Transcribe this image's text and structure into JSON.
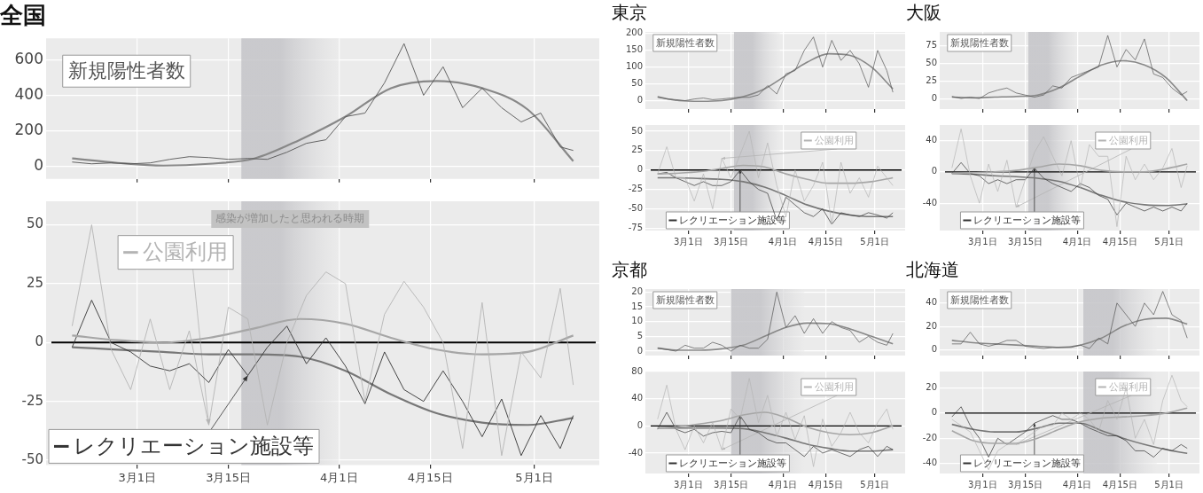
{
  "chart_data": [
    {
      "type": "line",
      "title": "全国",
      "x": [
        "--02-20",
        "--02-23",
        "--02-26",
        "--02-29",
        "--03-03",
        "--03-06",
        "--03-09",
        "--03-12",
        "--03-15",
        "--03-18",
        "--03-21",
        "--03-24",
        "--03-27",
        "--03-30",
        "--04-02",
        "--04-05",
        "--04-08",
        "--04-11",
        "--04-14",
        "--04-17",
        "--04-20",
        "--04-23",
        "--04-26",
        "--04-29",
        "--05-02",
        "--05-05",
        "--05-07"
      ],
      "xlim": [
        "--02-16",
        "--05-11"
      ],
      "xticks": [
        {
          "value": "--03-01",
          "label": "3月1日"
        },
        {
          "value": "--03-15",
          "label": "3月15日"
        },
        {
          "value": "--04-01",
          "label": "4月1日"
        },
        {
          "value": "--04-15",
          "label": "4月15日"
        },
        {
          "value": "--05-01",
          "label": "5月1日"
        }
      ],
      "ylim": [
        -70,
        720
      ],
      "yticks": [
        0,
        200,
        400,
        600
      ],
      "grid": true,
      "legend": false,
      "tick_labels": "y",
      "bands": [
        {
          "axis": "x",
          "from": "--03-17",
          "to": "--04-01",
          "color": "#c4c4c8"
        }
      ],
      "series": [
        {
          "name": "新規陽性者数",
          "color": "#555555",
          "values": [
            25,
            15,
            20,
            15,
            20,
            40,
            55,
            50,
            40,
            45,
            40,
            80,
            130,
            150,
            280,
            300,
            470,
            690,
            400,
            560,
            330,
            440,
            330,
            250,
            300,
            110,
            90
          ]
        },
        {
          "color": "#888888",
          "x": [
            "--02-20",
            "--02-27",
            "--03-05",
            "--03-12",
            "--03-19",
            "--03-26",
            "--04-02",
            "--04-09",
            "--04-16",
            "--04-23",
            "--04-30",
            "--05-07"
          ],
          "values": [
            45,
            20,
            5,
            15,
            45,
            150,
            280,
            440,
            480,
            440,
            320,
            30
          ]
        }
      ]
    },
    {
      "type": "line",
      "x": [
        "--02-20",
        "--02-23",
        "--02-26",
        "--02-29",
        "--03-03",
        "--03-06",
        "--03-09",
        "--03-12",
        "--03-15",
        "--03-18",
        "--03-21",
        "--03-24",
        "--03-27",
        "--03-30",
        "--04-02",
        "--04-05",
        "--04-08",
        "--04-11",
        "--04-14",
        "--04-17",
        "--04-20",
        "--04-23",
        "--04-26",
        "--04-29",
        "--05-02",
        "--05-05",
        "--05-07"
      ],
      "xlim": [
        "--02-16",
        "--05-11"
      ],
      "xticks": [
        {
          "value": "--03-01",
          "label": "3月1日"
        },
        {
          "value": "--03-15",
          "label": "3月15日"
        },
        {
          "value": "--04-01",
          "label": "4月1日"
        },
        {
          "value": "--04-15",
          "label": "4月15日"
        },
        {
          "value": "--05-01",
          "label": "5月1日"
        }
      ],
      "ylim": [
        -52,
        60
      ],
      "yticks": [
        -50,
        -25,
        0,
        25,
        50
      ],
      "grid": true,
      "legend": "bottom left",
      "bands": [
        {
          "axis": "x",
          "from": "--03-17",
          "to": "--04-01",
          "label": "感染が増加したと思われる時期",
          "color": "#c4c4c8"
        }
      ],
      "ref_lines": [
        {
          "axis": "y",
          "value": 0,
          "color": "#000000"
        }
      ],
      "series": [
        {
          "name": "公園利用",
          "color": "#b4b4b4",
          "values": [
            7,
            50,
            -3,
            -20,
            10,
            -20,
            5,
            -35,
            15,
            10,
            -35,
            0,
            20,
            30,
            25,
            -25,
            12,
            26,
            15,
            0,
            -45,
            17,
            -48,
            -4,
            -15,
            23,
            -18
          ]
        },
        {
          "color": "#a6a6a6",
          "x": [
            "--02-20",
            "--02-27",
            "--03-05",
            "--03-12",
            "--03-19",
            "--03-26",
            "--04-02",
            "--04-09",
            "--04-16",
            "--04-23",
            "--04-30",
            "--05-07"
          ],
          "values": [
            3,
            1,
            0,
            2,
            6,
            10,
            8,
            2,
            -3,
            -5,
            -4,
            3
          ]
        },
        {
          "name": "レクリエーション施設等",
          "color": "#333333",
          "values": [
            -2,
            18,
            0,
            -4,
            -10,
            -12,
            -9,
            -17,
            -3,
            -14,
            -2,
            7,
            -9,
            2,
            -10,
            -26,
            -4,
            -20,
            -25,
            -12,
            -25,
            -40,
            -24,
            -48,
            -31,
            -45,
            -31
          ]
        },
        {
          "color": "#777777",
          "x": [
            "--02-20",
            "--02-27",
            "--03-05",
            "--03-12",
            "--03-19",
            "--03-26",
            "--04-02",
            "--04-09",
            "--04-16",
            "--04-23",
            "--04-30",
            "--05-07"
          ],
          "values": [
            -2,
            -3,
            -4,
            -5,
            -5,
            -6,
            -12,
            -22,
            -30,
            -34,
            -35,
            -32
          ]
        }
      ]
    },
    {
      "type": "line",
      "title": "東京",
      "x": [
        "--02-20",
        "--02-23",
        "--02-26",
        "--02-29",
        "--03-03",
        "--03-06",
        "--03-09",
        "--03-12",
        "--03-15",
        "--03-18",
        "--03-21",
        "--03-24",
        "--03-27",
        "--03-30",
        "--04-02",
        "--04-05",
        "--04-08",
        "--04-11",
        "--04-14",
        "--04-17",
        "--04-20",
        "--04-23",
        "--04-26",
        "--04-29",
        "--05-02",
        "--05-05",
        "--05-07"
      ],
      "xlim": [
        "--02-16",
        "--05-11"
      ],
      "xticks": [
        {
          "value": "--03-01",
          "label": "3月1日"
        },
        {
          "value": "--03-15",
          "label": "3月15日"
        },
        {
          "value": "--04-01",
          "label": "4月1日"
        },
        {
          "value": "--04-15",
          "label": "4月15日"
        },
        {
          "value": "--05-01",
          "label": "5月1日"
        }
      ],
      "ylim": [
        -25,
        205
      ],
      "yticks": [
        0,
        50,
        100,
        150,
        200
      ],
      "grid": true,
      "legend": false,
      "tick_labels": "y",
      "bands": [
        {
          "axis": "x",
          "from": "--03-16",
          "to": "--03-31",
          "color": "#c4c4c8"
        }
      ],
      "series": [
        {
          "name": "新規陽性者数",
          "color": "#555555",
          "values": [
            10,
            5,
            3,
            0,
            5,
            8,
            3,
            5,
            8,
            10,
            10,
            17,
            45,
            20,
            80,
            90,
            150,
            190,
            100,
            180,
            120,
            150,
            110,
            40,
            150,
            90,
            25
          ]
        },
        {
          "color": "#888888",
          "x": [
            "--02-20",
            "--02-27",
            "--03-05",
            "--03-12",
            "--03-19",
            "--03-26",
            "--04-02",
            "--04-09",
            "--04-16",
            "--04-23",
            "--04-30",
            "--05-07"
          ],
          "values": [
            12,
            0,
            -2,
            0,
            12,
            35,
            75,
            115,
            140,
            135,
            100,
            35
          ]
        }
      ]
    },
    {
      "type": "line",
      "x": [
        "--02-20",
        "--02-23",
        "--02-26",
        "--02-29",
        "--03-03",
        "--03-06",
        "--03-09",
        "--03-12",
        "--03-15",
        "--03-18",
        "--03-21",
        "--03-24",
        "--03-27",
        "--03-30",
        "--04-02",
        "--04-05",
        "--04-08",
        "--04-11",
        "--04-14",
        "--04-17",
        "--04-20",
        "--04-23",
        "--04-26",
        "--04-29",
        "--05-02",
        "--05-05",
        "--05-07"
      ],
      "xlim": [
        "--02-16",
        "--05-11"
      ],
      "xticks": [
        {
          "value": "--03-01",
          "label": "3月1日"
        },
        {
          "value": "--03-15",
          "label": "3月15日"
        },
        {
          "value": "--04-01",
          "label": "4月1日"
        },
        {
          "value": "--04-15",
          "label": "4月15日"
        },
        {
          "value": "--05-01",
          "label": "5月1日"
        }
      ],
      "ylim": [
        -78,
        58
      ],
      "yticks": [
        -75,
        -50,
        -25,
        0,
        25,
        50
      ],
      "grid": true,
      "legend": "bottom left",
      "bands": [
        {
          "axis": "x",
          "from": "--03-16",
          "to": "--03-31",
          "color": "#c4c4c8"
        }
      ],
      "ref_lines": [
        {
          "axis": "y",
          "value": 0,
          "color": "#000000"
        }
      ],
      "series": [
        {
          "name": "公園利用",
          "color": "#b4b4b4",
          "values": [
            -5,
            30,
            -10,
            -10,
            -40,
            -5,
            -50,
            15,
            -10,
            20,
            50,
            -10,
            35,
            -20,
            -60,
            0,
            -40,
            -20,
            10,
            -70,
            10,
            -30,
            -10,
            -35,
            5,
            -10,
            -20
          ]
        },
        {
          "color": "#a6a6a6",
          "x": [
            "--02-20",
            "--02-27",
            "--03-05",
            "--03-12",
            "--03-19",
            "--03-26",
            "--04-02",
            "--04-09",
            "--04-16",
            "--04-23",
            "--04-30",
            "--05-07"
          ],
          "values": [
            -5,
            -4,
            -2,
            2,
            6,
            4,
            -5,
            -12,
            -17,
            -17,
            -15,
            -10
          ]
        },
        {
          "name": "レクリエーション施設等",
          "color": "#333333",
          "values": [
            -5,
            -3,
            -10,
            -15,
            -20,
            -15,
            -20,
            -20,
            -15,
            0,
            -15,
            -25,
            -30,
            -65,
            -35,
            -45,
            -55,
            -60,
            -50,
            -70,
            -55,
            -58,
            -60,
            -55,
            -58,
            -62,
            -55
          ]
        },
        {
          "color": "#777777",
          "x": [
            "--02-20",
            "--02-27",
            "--03-05",
            "--03-12",
            "--03-19",
            "--03-26",
            "--04-02",
            "--04-09",
            "--04-16",
            "--04-23",
            "--04-30",
            "--05-07"
          ],
          "values": [
            -10,
            -10,
            -11,
            -12,
            -15,
            -22,
            -33,
            -45,
            -53,
            -58,
            -60,
            -60
          ]
        }
      ]
    },
    {
      "type": "line",
      "title": "大阪",
      "x": [
        "--02-20",
        "--02-23",
        "--02-26",
        "--02-29",
        "--03-03",
        "--03-06",
        "--03-09",
        "--03-12",
        "--03-15",
        "--03-18",
        "--03-21",
        "--03-24",
        "--03-27",
        "--03-30",
        "--04-02",
        "--04-05",
        "--04-08",
        "--04-11",
        "--04-14",
        "--04-17",
        "--04-20",
        "--04-23",
        "--04-26",
        "--04-29",
        "--05-02",
        "--05-05",
        "--05-07"
      ],
      "xlim": [
        "--02-16",
        "--05-11"
      ],
      "xticks": [
        {
          "value": "--03-01",
          "label": "3月1日"
        },
        {
          "value": "--03-15",
          "label": "3月15日"
        },
        {
          "value": "--04-01",
          "label": "4月1日"
        },
        {
          "value": "--04-15",
          "label": "4月15日"
        },
        {
          "value": "--05-01",
          "label": "5月1日"
        }
      ],
      "ylim": [
        -15,
        95
      ],
      "yticks": [
        0,
        25,
        50,
        75
      ],
      "grid": true,
      "legend": false,
      "tick_labels": "y",
      "bands": [
        {
          "axis": "x",
          "from": "--03-16",
          "to": "--04-01",
          "color": "#c4c4c8"
        }
      ],
      "series": [
        {
          "name": "新規陽性者数",
          "color": "#555555",
          "values": [
            3,
            0,
            2,
            0,
            8,
            12,
            15,
            8,
            5,
            2,
            5,
            18,
            15,
            30,
            35,
            40,
            45,
            90,
            45,
            70,
            55,
            85,
            35,
            30,
            15,
            5,
            10
          ]
        },
        {
          "color": "#888888",
          "x": [
            "--02-20",
            "--02-27",
            "--03-05",
            "--03-12",
            "--03-19",
            "--03-26",
            "--04-02",
            "--04-09",
            "--04-16",
            "--04-23",
            "--04-30",
            "--05-07"
          ],
          "values": [
            2,
            1,
            2,
            3,
            5,
            15,
            32,
            48,
            54,
            48,
            30,
            -3
          ]
        }
      ]
    },
    {
      "type": "line",
      "x": [
        "--02-20",
        "--02-23",
        "--02-26",
        "--02-29",
        "--03-03",
        "--03-06",
        "--03-09",
        "--03-12",
        "--03-15",
        "--03-18",
        "--03-21",
        "--03-24",
        "--03-27",
        "--03-30",
        "--04-02",
        "--04-05",
        "--04-08",
        "--04-11",
        "--04-14",
        "--04-17",
        "--04-20",
        "--04-23",
        "--04-26",
        "--04-29",
        "--05-02",
        "--05-05",
        "--05-07"
      ],
      "xlim": [
        "--02-16",
        "--05-11"
      ],
      "xticks": [
        {
          "value": "--03-01",
          "label": "3月1日"
        },
        {
          "value": "--03-15",
          "label": "3月15日"
        },
        {
          "value": "--04-01",
          "label": "4月1日"
        },
        {
          "value": "--04-15",
          "label": "4月15日"
        },
        {
          "value": "--05-01",
          "label": "5月1日"
        }
      ],
      "ylim": [
        -75,
        60
      ],
      "yticks": [
        -40,
        0,
        40
      ],
      "grid": true,
      "legend": "bottom left",
      "bands": [
        {
          "axis": "x",
          "from": "--03-16",
          "to": "--04-01",
          "color": "#c4c4c8"
        }
      ],
      "ref_lines": [
        {
          "axis": "y",
          "value": 0,
          "color": "#000000"
        }
      ],
      "series": [
        {
          "name": "公園利用",
          "color": "#b4b4b4",
          "values": [
            5,
            55,
            -5,
            -40,
            10,
            -25,
            15,
            -45,
            -10,
            25,
            45,
            20,
            -5,
            40,
            -20,
            35,
            20,
            20,
            -70,
            20,
            -10,
            10,
            -10,
            5,
            30,
            -20,
            8
          ]
        },
        {
          "color": "#a6a6a6",
          "x": [
            "--02-20",
            "--02-27",
            "--03-05",
            "--03-12",
            "--03-19",
            "--03-26",
            "--04-02",
            "--04-09",
            "--04-16",
            "--04-23",
            "--04-30",
            "--05-07"
          ],
          "values": [
            -2,
            -1,
            0,
            2,
            6,
            10,
            8,
            2,
            0,
            0,
            4,
            10
          ]
        },
        {
          "name": "レクリエーション施設等",
          "color": "#333333",
          "values": [
            -2,
            12,
            -2,
            -5,
            -15,
            -10,
            -15,
            -10,
            -10,
            5,
            -8,
            -15,
            -20,
            -25,
            -15,
            -20,
            -30,
            -35,
            -55,
            -40,
            -45,
            -50,
            -45,
            -50,
            -45,
            -50,
            -40
          ]
        },
        {
          "color": "#777777",
          "x": [
            "--02-20",
            "--02-27",
            "--03-05",
            "--03-12",
            "--03-19",
            "--03-26",
            "--04-02",
            "--04-09",
            "--04-16",
            "--04-23",
            "--04-30",
            "--05-07"
          ],
          "values": [
            -2,
            -3,
            -5,
            -6,
            -8,
            -12,
            -20,
            -30,
            -38,
            -42,
            -43,
            -41
          ]
        }
      ]
    },
    {
      "type": "line",
      "title": "京都",
      "x": [
        "--02-20",
        "--02-23",
        "--02-26",
        "--02-29",
        "--03-03",
        "--03-06",
        "--03-09",
        "--03-12",
        "--03-15",
        "--03-18",
        "--03-21",
        "--03-24",
        "--03-27",
        "--03-30",
        "--04-02",
        "--04-05",
        "--04-08",
        "--04-11",
        "--04-14",
        "--04-17",
        "--04-20",
        "--04-23",
        "--04-26",
        "--04-29",
        "--05-02",
        "--05-05",
        "--05-07"
      ],
      "xlim": [
        "--02-16",
        "--05-11"
      ],
      "xticks": [
        {
          "value": "--03-01",
          "label": "3月1日"
        },
        {
          "value": "--03-15",
          "label": "3月15日"
        },
        {
          "value": "--04-01",
          "label": "4月1日"
        },
        {
          "value": "--04-15",
          "label": "4月15日"
        },
        {
          "value": "--05-01",
          "label": "5月1日"
        }
      ],
      "ylim": [
        -1.5,
        21
      ],
      "yticks": [
        0,
        5,
        10,
        15,
        20
      ],
      "grid": true,
      "legend": false,
      "tick_labels": "y",
      "bands": [
        {
          "axis": "x",
          "from": "--03-15",
          "to": "--04-08",
          "color": "#c4c4c8"
        }
      ],
      "series": [
        {
          "name": "新規陽性者数",
          "color": "#555555",
          "values": [
            1,
            0.5,
            0,
            2,
            1,
            1,
            3,
            2,
            0,
            2,
            1,
            1,
            4,
            20,
            8,
            12,
            6,
            11,
            6,
            10,
            8,
            7,
            3,
            5,
            3,
            2,
            6
          ]
        },
        {
          "color": "#888888",
          "x": [
            "--02-20",
            "--02-27",
            "--03-05",
            "--03-12",
            "--03-19",
            "--03-26",
            "--04-02",
            "--04-09",
            "--04-16",
            "--04-23",
            "--04-30",
            "--05-07"
          ],
          "values": [
            1,
            0.3,
            0.3,
            0.8,
            2,
            5,
            8,
            9.5,
            9.3,
            7.5,
            5,
            2.5
          ]
        }
      ]
    },
    {
      "type": "line",
      "x": [
        "--02-20",
        "--02-23",
        "--02-26",
        "--02-29",
        "--03-03",
        "--03-06",
        "--03-09",
        "--03-12",
        "--03-15",
        "--03-18",
        "--03-21",
        "--03-24",
        "--03-27",
        "--03-30",
        "--04-02",
        "--04-05",
        "--04-08",
        "--04-11",
        "--04-14",
        "--04-17",
        "--04-20",
        "--04-23",
        "--04-26",
        "--04-29",
        "--05-02",
        "--05-05",
        "--05-07"
      ],
      "xlim": [
        "--02-16",
        "--05-11"
      ],
      "xticks": [
        {
          "value": "--03-01",
          "label": "3月1日"
        },
        {
          "value": "--03-15",
          "label": "3月15日"
        },
        {
          "value": "--04-01",
          "label": "4月1日"
        },
        {
          "value": "--04-15",
          "label": "4月15日"
        },
        {
          "value": "--05-01",
          "label": "5月1日"
        }
      ],
      "ylim": [
        -70,
        80
      ],
      "yticks": [
        -40,
        0,
        40,
        80
      ],
      "grid": true,
      "legend": "bottom left",
      "bands": [
        {
          "axis": "x",
          "from": "--03-15",
          "to": "--04-08",
          "color": "#c4c4c8"
        }
      ],
      "ref_lines": [
        {
          "axis": "y",
          "value": 0,
          "color": "#000000"
        }
      ],
      "series": [
        {
          "name": "公園利用",
          "color": "#b4b4b4",
          "values": [
            10,
            60,
            -5,
            -35,
            0,
            -25,
            5,
            -35,
            25,
            10,
            70,
            5,
            45,
            -15,
            20,
            -20,
            15,
            -60,
            10,
            -30,
            -10,
            20,
            -10,
            -25,
            5,
            25,
            -5
          ]
        },
        {
          "color": "#a6a6a6",
          "x": [
            "--02-20",
            "--02-27",
            "--03-05",
            "--03-12",
            "--03-19",
            "--03-26",
            "--04-02",
            "--04-09",
            "--04-16",
            "--04-23",
            "--04-30",
            "--05-07"
          ],
          "values": [
            -3,
            -1,
            3,
            8,
            16,
            20,
            12,
            -2,
            -10,
            -13,
            -10,
            0
          ]
        },
        {
          "name": "レクリエーション施設等",
          "color": "#333333",
          "values": [
            -5,
            20,
            -5,
            -10,
            -5,
            -15,
            -10,
            -8,
            -10,
            15,
            -5,
            -10,
            -20,
            -25,
            -25,
            -35,
            -45,
            -30,
            -40,
            -35,
            -40,
            -45,
            -35,
            -30,
            -45,
            -30,
            -35
          ]
        },
        {
          "color": "#777777",
          "x": [
            "--02-20",
            "--02-27",
            "--03-05",
            "--03-12",
            "--03-19",
            "--03-26",
            "--04-02",
            "--04-09",
            "--04-16",
            "--04-23",
            "--04-30",
            "--05-07"
          ],
          "values": [
            -3,
            -3,
            -3,
            -3,
            -4,
            -10,
            -18,
            -27,
            -33,
            -37,
            -37,
            -35
          ]
        }
      ]
    },
    {
      "type": "line",
      "title": "北海道",
      "x": [
        "--02-20",
        "--02-23",
        "--02-26",
        "--02-29",
        "--03-03",
        "--03-06",
        "--03-09",
        "--03-12",
        "--03-15",
        "--03-18",
        "--03-21",
        "--03-24",
        "--03-27",
        "--03-30",
        "--04-02",
        "--04-05",
        "--04-08",
        "--04-11",
        "--04-14",
        "--04-17",
        "--04-20",
        "--04-23",
        "--04-26",
        "--04-29",
        "--05-02",
        "--05-05",
        "--05-07"
      ],
      "xlim": [
        "--02-16",
        "--05-11"
      ],
      "xticks": [
        {
          "value": "--03-01",
          "label": "3月1日"
        },
        {
          "value": "--03-15",
          "label": "3月15日"
        },
        {
          "value": "--04-01",
          "label": "4月1日"
        },
        {
          "value": "--04-15",
          "label": "4月15日"
        },
        {
          "value": "--05-01",
          "label": "5月1日"
        }
      ],
      "ylim": [
        -5,
        52
      ],
      "yticks": [
        0,
        20,
        40
      ],
      "grid": true,
      "legend": false,
      "tick_labels": "y",
      "bands": [
        {
          "axis": "x",
          "from": "--04-03",
          "to": "--04-27",
          "color": "#c4c4c8"
        }
      ],
      "series": [
        {
          "name": "新規陽性者数",
          "color": "#555555",
          "values": [
            5,
            5,
            15,
            5,
            3,
            5,
            8,
            8,
            3,
            2,
            1,
            2,
            2,
            2,
            4,
            1,
            10,
            5,
            40,
            30,
            20,
            40,
            30,
            50,
            30,
            25,
            10
          ]
        },
        {
          "color": "#888888",
          "x": [
            "--02-20",
            "--02-27",
            "--03-05",
            "--03-12",
            "--03-19",
            "--03-26",
            "--04-02",
            "--04-09",
            "--04-16",
            "--04-23",
            "--04-30",
            "--05-07"
          ],
          "values": [
            8,
            6,
            5,
            4,
            3,
            2,
            4,
            10,
            20,
            26,
            27,
            22
          ]
        }
      ]
    },
    {
      "type": "line",
      "x": [
        "--02-20",
        "--02-23",
        "--02-26",
        "--02-29",
        "--03-03",
        "--03-06",
        "--03-09",
        "--03-12",
        "--03-15",
        "--03-18",
        "--03-21",
        "--03-24",
        "--03-27",
        "--03-30",
        "--04-02",
        "--04-05",
        "--04-08",
        "--04-11",
        "--04-14",
        "--04-17",
        "--04-20",
        "--04-23",
        "--04-26",
        "--04-29",
        "--05-02",
        "--05-05",
        "--05-07"
      ],
      "xlim": [
        "--02-16",
        "--05-11"
      ],
      "xticks": [
        {
          "value": "--03-01",
          "label": "3月1日"
        },
        {
          "value": "--03-15",
          "label": "3月15日"
        },
        {
          "value": "--04-01",
          "label": "4月1日"
        },
        {
          "value": "--04-15",
          "label": "4月15日"
        },
        {
          "value": "--05-01",
          "label": "5月1日"
        }
      ],
      "ylim": [
        -48,
        33
      ],
      "yticks": [
        -40,
        -20,
        0,
        20
      ],
      "grid": true,
      "legend": "bottom left",
      "bands": [
        {
          "axis": "x",
          "from": "--04-03",
          "to": "--04-27",
          "color": "#c4c4c8"
        }
      ],
      "ref_lines": [
        {
          "axis": "y",
          "value": 0,
          "color": "#000000"
        }
      ],
      "series": [
        {
          "name": "公園利用",
          "color": "#b4b4b4",
          "values": [
            -5,
            -10,
            -15,
            -30,
            -45,
            -30,
            -25,
            -25,
            -20,
            -15,
            -10,
            -10,
            0,
            -5,
            0,
            -5,
            -15,
            10,
            -5,
            20,
            -20,
            -5,
            -25,
            10,
            30,
            10,
            5
          ]
        },
        {
          "color": "#a6a6a6",
          "x": [
            "--02-20",
            "--02-27",
            "--03-05",
            "--03-12",
            "--03-19",
            "--03-26",
            "--04-02",
            "--04-09",
            "--04-16",
            "--04-23",
            "--04-30",
            "--05-07"
          ],
          "values": [
            -14,
            -22,
            -24,
            -24,
            -20,
            -13,
            -7,
            -4,
            -3,
            -2,
            0,
            4
          ]
        },
        {
          "name": "レクリエーション施設等",
          "color": "#333333",
          "values": [
            -3,
            5,
            -10,
            -20,
            -35,
            -20,
            -25,
            -20,
            -15,
            -8,
            -5,
            -2,
            -5,
            -5,
            -8,
            -12,
            -15,
            -18,
            -18,
            -22,
            -30,
            -30,
            -35,
            -28,
            -30,
            -25,
            -28
          ]
        },
        {
          "color": "#777777",
          "x": [
            "--02-20",
            "--02-27",
            "--03-05",
            "--03-12",
            "--03-19",
            "--03-26",
            "--04-02",
            "--04-09",
            "--04-16",
            "--04-23",
            "--04-30",
            "--05-07"
          ],
          "values": [
            -9,
            -13,
            -15,
            -15,
            -12,
            -8,
            -8,
            -14,
            -20,
            -25,
            -29,
            -32
          ]
        }
      ]
    }
  ]
}
